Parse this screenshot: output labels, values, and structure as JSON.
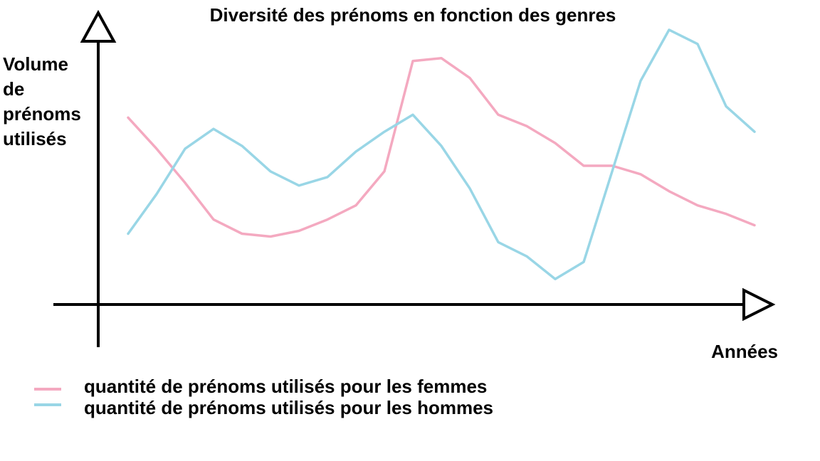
{
  "chart_data": {
    "type": "line",
    "title": "Diversité des prénoms en fonction des genres",
    "y_label": [
      "Volume",
      "de",
      "prénoms",
      "utilisés"
    ],
    "x_label": "Années",
    "x": [
      1,
      2,
      3,
      4,
      5,
      6,
      7,
      8,
      9,
      10,
      11,
      12,
      13,
      14,
      15,
      16,
      17,
      18,
      19,
      20,
      21,
      22,
      23
    ],
    "xlim": [
      0,
      23.5
    ],
    "ylim": [
      0,
      100
    ],
    "series": [
      {
        "name": "quantité de prénoms utilisés pour les femmes",
        "color": "#f4a9c0",
        "values": [
          66,
          55,
          43,
          30,
          25,
          24,
          26,
          30,
          35,
          47,
          86,
          87,
          80,
          67,
          63,
          57,
          49,
          49,
          46,
          40,
          35,
          32,
          28
        ]
      },
      {
        "name": "quantité de prénoms utilisés pour les hommes",
        "color": "#99d6e6",
        "values": [
          25,
          39,
          55,
          62,
          56,
          47,
          42,
          45,
          54,
          61,
          67,
          56,
          41,
          22,
          17,
          9,
          15,
          47,
          79,
          97,
          92,
          70,
          61
        ]
      }
    ]
  }
}
